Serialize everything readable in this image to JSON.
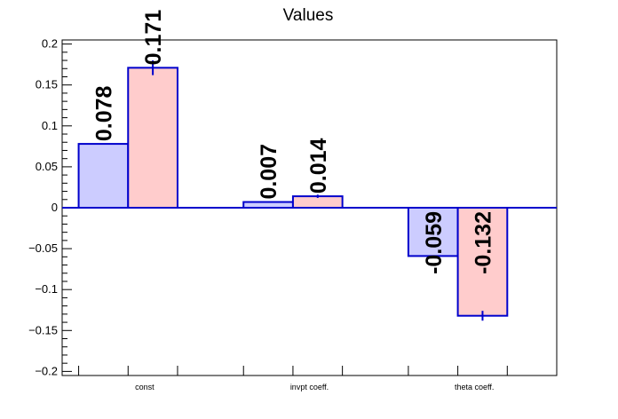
{
  "chart_data": {
    "type": "bar",
    "title": "Values",
    "categories": [
      "const",
      "invpt coeff.",
      "theta coeff."
    ],
    "series": [
      {
        "values": [
          0.078,
          0.007,
          -0.059
        ],
        "errors": [
          0.0,
          0.0,
          0.0
        ],
        "labels": [
          "0.078",
          "0.007",
          "-0.059"
        ],
        "fill": "#ccccff",
        "stroke": "#0000cc"
      },
      {
        "values": [
          0.171,
          0.014,
          -0.132
        ],
        "errors": [
          0.009,
          0.002,
          0.006
        ],
        "labels": [
          "0.171",
          "0.014",
          "-0.132"
        ],
        "fill": "#ffcccc",
        "stroke": "#0000cc"
      }
    ],
    "ylim": [
      -0.205,
      0.205
    ],
    "yticks": [
      -0.2,
      -0.15,
      -0.1,
      -0.05,
      0,
      0.05,
      0.1,
      0.15,
      0.2
    ],
    "ytick_labels": [
      "−0.2",
      "−0.15",
      "−0.1",
      "−0.05",
      "0",
      "0.05",
      "0.1",
      "0.15",
      "0.2"
    ],
    "xlabel": "",
    "ylabel": "",
    "grid": false,
    "zero_line_color": "#0000cc"
  }
}
